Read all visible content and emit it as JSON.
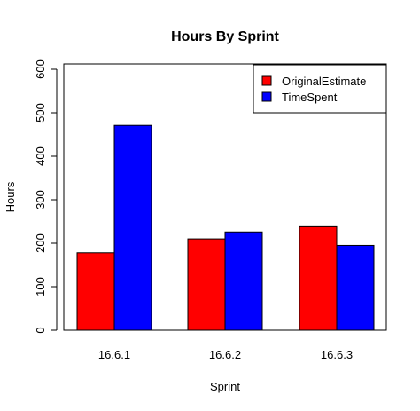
{
  "chart_data": {
    "type": "bar",
    "title": "Hours By Sprint",
    "xlabel": "Sprint",
    "ylabel": "Hours",
    "categories": [
      "16.6.1",
      "16.6.2",
      "16.6.3"
    ],
    "series": [
      {
        "name": "OriginalEstimate",
        "color": "#ff0000",
        "values": [
          178,
          210,
          238
        ]
      },
      {
        "name": "TimeSpent",
        "color": "#0000ff",
        "values": [
          471,
          226,
          195
        ]
      }
    ],
    "ylim": [
      0,
      600
    ],
    "yticks": [
      0,
      100,
      200,
      300,
      400,
      500,
      600
    ],
    "grid": false,
    "legend": "top-right"
  }
}
